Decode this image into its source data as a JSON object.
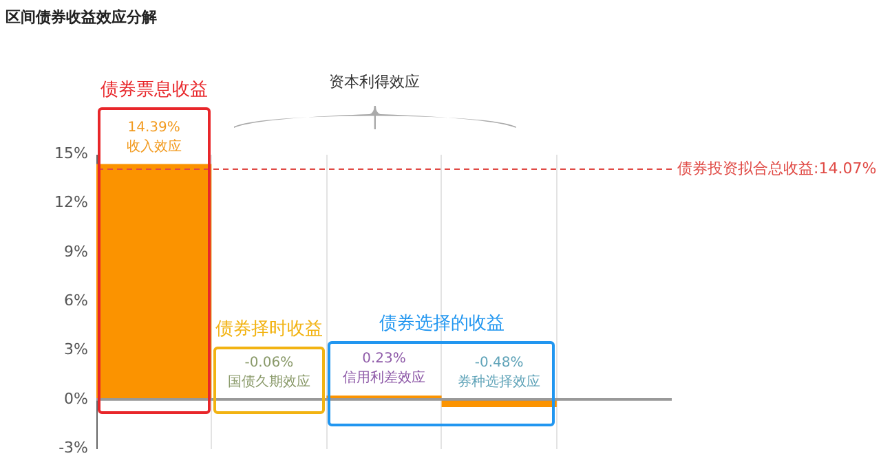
{
  "chart_data": {
    "type": "bar",
    "title": "区间债券收益效应分解",
    "categories": [
      "收入效应",
      "国债久期效应",
      "信用利差效应",
      "券种选择效应",
      null
    ],
    "values": [
      14.39,
      -0.06,
      0.23,
      -0.48,
      null
    ],
    "color": "#fb9300",
    "value_labels": [
      "14.39%",
      "-0.06%",
      "0.23%",
      "-0.48%",
      null
    ],
    "ylim": [
      -3,
      15
    ],
    "yticks": [
      {
        "value": -3,
        "label": "-3%"
      },
      {
        "value": 0,
        "label": "0%"
      },
      {
        "value": 3,
        "label": "3%"
      },
      {
        "value": 6,
        "label": "6%"
      },
      {
        "value": 9,
        "label": "9%"
      },
      {
        "value": 12,
        "label": "12%"
      },
      {
        "value": 15,
        "label": "15%"
      }
    ],
    "grid": "x",
    "ref_lines": [
      {
        "axis": "y",
        "value": 14.07,
        "label": "债券投资拟合总收益:14.07%",
        "color": "#e04a45",
        "line_style": "dashed"
      }
    ],
    "annotations": [
      "债券票息收益",
      "资本利得效应",
      "债券择时收益",
      "债券选择的收益"
    ]
  }
}
